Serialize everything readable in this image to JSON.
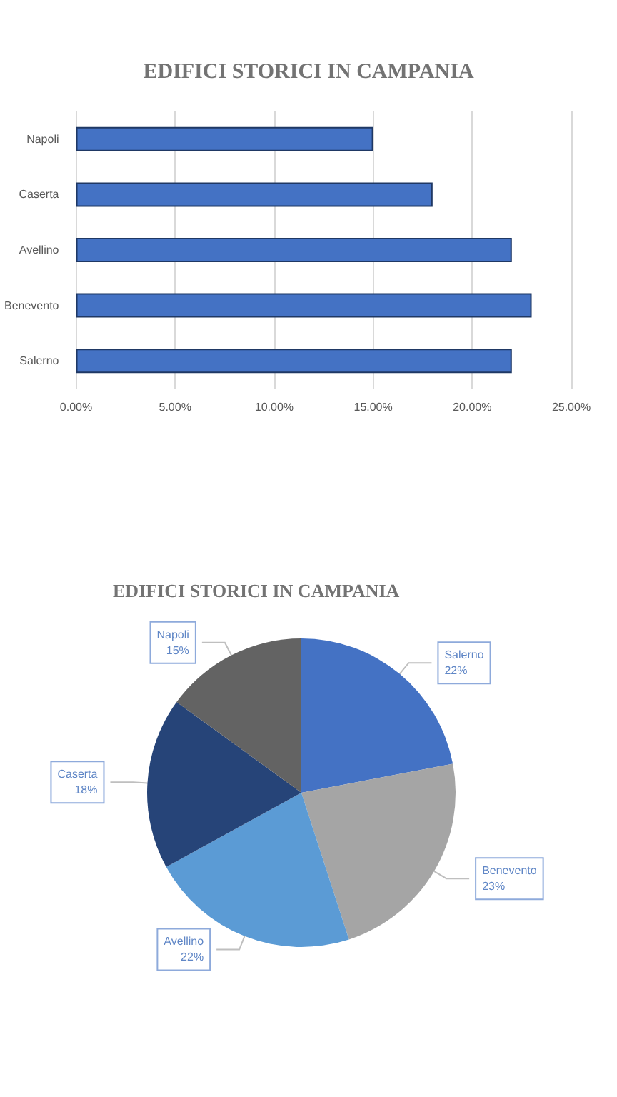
{
  "chart_data": [
    {
      "type": "bar",
      "title": "EDIFICI STORICI IN CAMPANIA",
      "orientation": "horizontal",
      "categories": [
        "Napoli",
        "Caserta",
        "Avellino",
        "Benevento",
        "Salerno"
      ],
      "values": [
        15,
        18,
        22,
        23,
        22
      ],
      "color": "#4472c4",
      "xlim": [
        0,
        25
      ],
      "xticks": [
        {
          "value": 0,
          "label": "0.00%"
        },
        {
          "value": 5,
          "label": "5.00%"
        },
        {
          "value": 10,
          "label": "10.00%"
        },
        {
          "value": 15,
          "label": "15.00%"
        },
        {
          "value": 20,
          "label": "20.00%"
        },
        {
          "value": 25,
          "label": "25.00%"
        }
      ],
      "grid": "x"
    },
    {
      "type": "pie",
      "title": "EDIFICI STORICI IN CAMPANIA",
      "categories": [
        "Salerno",
        "Benevento",
        "Avellino",
        "Caserta",
        "Napoli"
      ],
      "values": [
        22,
        23,
        22,
        18,
        15
      ],
      "colors": [
        "#4472c4",
        "#a5a5a5",
        "#5b9bd5",
        "#264478",
        "#636363"
      ],
      "value_labels": [
        "22%",
        "23%",
        "22%",
        "18%",
        "15%"
      ]
    }
  ]
}
